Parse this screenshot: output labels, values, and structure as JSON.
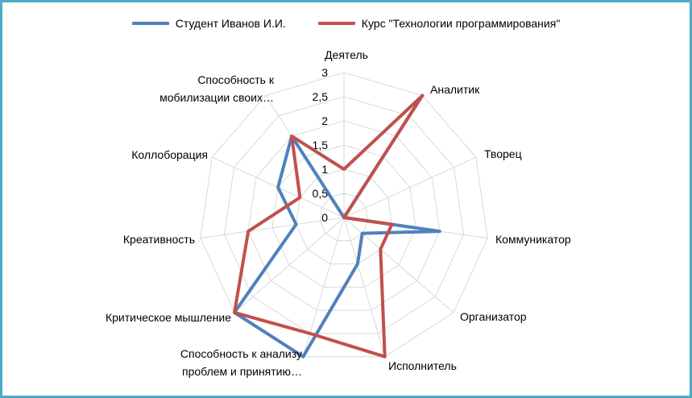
{
  "chart_data": {
    "type": "radar",
    "categories": [
      "Деятель",
      "Аналитик",
      "Творец",
      "Коммуникатор",
      "Организатор",
      "Исполнитель",
      [
        "Способность к анализу",
        "проблем и принятию…"
      ],
      "Критическое мышление",
      "Креативность",
      "Коллоборация",
      [
        "Способность к",
        "мобилизации своих…"
      ]
    ],
    "ticks": [
      "0",
      "0,5",
      "1",
      "1,5",
      "2",
      "2,5",
      "3"
    ],
    "rlim": [
      0,
      3
    ],
    "grid": true,
    "legend": "top",
    "series": [
      {
        "name": "Студент Иванов И.И.",
        "color": "#4f81bd",
        "values": [
          0,
          3,
          0,
          2,
          0.5,
          1,
          3,
          3,
          1,
          1.5,
          2
        ]
      },
      {
        "name": "Курс \"Технологии программирования\"",
        "color": "#c0504d",
        "values": [
          1,
          3,
          0,
          1,
          1,
          3,
          2.5,
          3,
          2,
          1,
          2
        ]
      }
    ]
  }
}
